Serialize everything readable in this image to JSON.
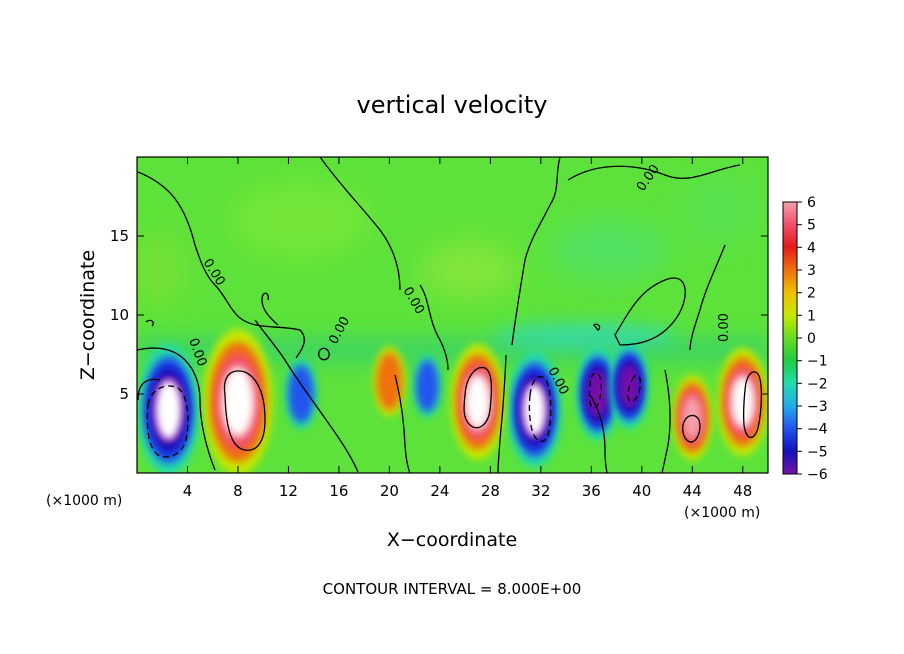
{
  "chart_data": {
    "type": "heatmap",
    "title": "vertical velocity",
    "xlabel": "X−coordinate",
    "ylabel": "Z−coordinate",
    "x_unit_left": "(×1000 m)",
    "x_unit_right": "(×1000 m)",
    "footer": "CONTOUR INTERVAL = 8.000E+00",
    "contour_label": "0.00",
    "xlim": [
      0,
      50
    ],
    "ylim": [
      0,
      20
    ],
    "x_ticks": [
      4,
      8,
      12,
      16,
      20,
      24,
      28,
      32,
      36,
      40,
      44,
      48
    ],
    "y_ticks": [
      5,
      10,
      15
    ],
    "colorbar": {
      "range": [
        -6,
        6
      ],
      "tick_values": [
        6,
        5,
        4,
        3,
        2,
        1,
        0,
        -1,
        -2,
        -3,
        -4,
        -5,
        -6
      ],
      "tick_labels": [
        "6",
        "5",
        "4",
        "3",
        "2",
        "1",
        "0",
        "−1",
        "−2",
        "−3",
        "−4",
        "−5",
        "−6"
      ],
      "colors": [
        "#f5a0a8",
        "#f0506a",
        "#e81818",
        "#f07010",
        "#f0c000",
        "#c8e800",
        "#66dd22",
        "#22cc44",
        "#22ddaa",
        "#22aaee",
        "#2255ee",
        "#1111bb",
        "#7711aa"
      ]
    },
    "background_value": 0.3,
    "background_color": "#5ce23a",
    "updraft_cores": [
      {
        "x": 8.0,
        "z": 4.5,
        "w": 14
      },
      {
        "x": 27.0,
        "z": 4.5,
        "w": 10
      },
      {
        "x": 48.0,
        "z": 4.5,
        "w": 9
      },
      {
        "x": 44.0,
        "z": 3.5,
        "w": 6
      },
      {
        "x": 20.0,
        "z": 5.8,
        "w": 4
      }
    ],
    "downdraft_cores": [
      {
        "x": 2.5,
        "z": 4.0,
        "w": -12
      },
      {
        "x": 31.5,
        "z": 4.0,
        "w": -10
      },
      {
        "x": 36.5,
        "z": 5.0,
        "w": -7
      },
      {
        "x": 39.0,
        "z": 5.5,
        "w": -6
      },
      {
        "x": 13.0,
        "z": 5.0,
        "w": -4
      },
      {
        "x": 23.0,
        "z": 5.5,
        "w": -3
      }
    ]
  }
}
